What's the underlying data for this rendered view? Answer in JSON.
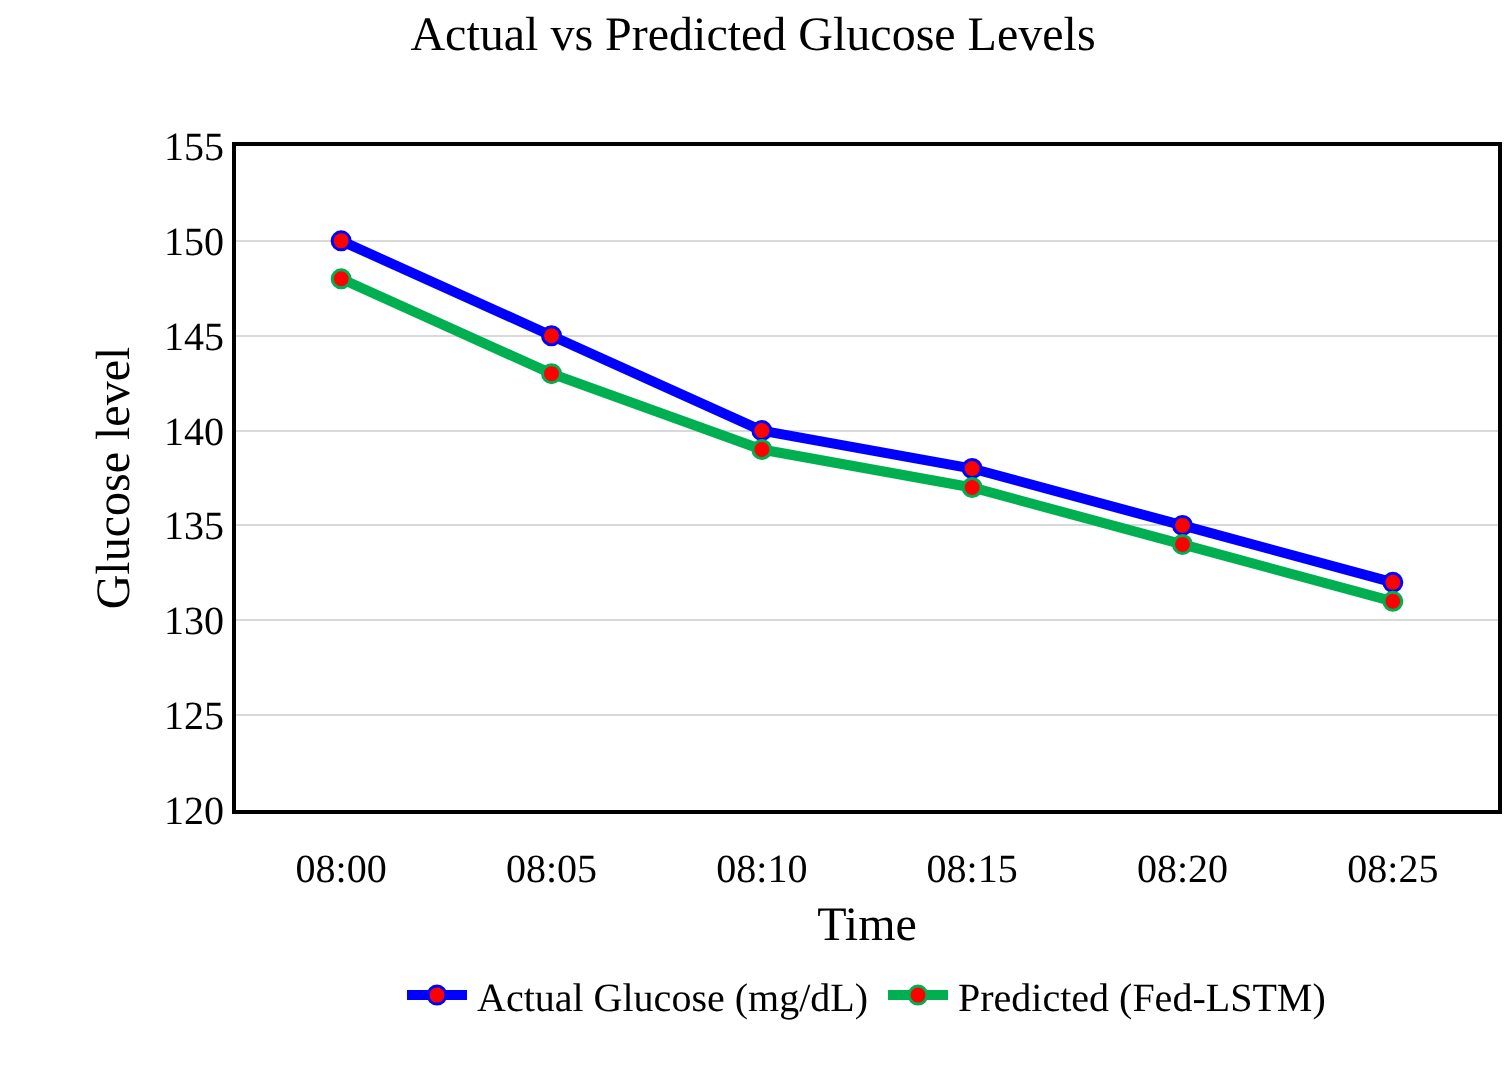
{
  "chart_data": {
    "type": "line",
    "title": "Actual vs Predicted Glucose Levels",
    "xlabel": "Time",
    "ylabel": "Glucose level",
    "categories": [
      "08:00",
      "08:05",
      "08:10",
      "08:15",
      "08:20",
      "08:25"
    ],
    "series": [
      {
        "name": "Actual Glucose (mg/dL)",
        "color": "#0000ff",
        "values": [
          150,
          145,
          140,
          138,
          135,
          132
        ]
      },
      {
        "name": "Predicted (Fed-LSTM)",
        "color": "#00b050",
        "values": [
          148,
          143,
          139,
          137,
          134,
          131
        ]
      }
    ],
    "ylim": [
      120,
      155
    ],
    "yticks": [
      120,
      125,
      130,
      135,
      140,
      145,
      150,
      155
    ],
    "grid": "y",
    "legend": "bottom",
    "marker": "circle",
    "line_style": "solid"
  }
}
